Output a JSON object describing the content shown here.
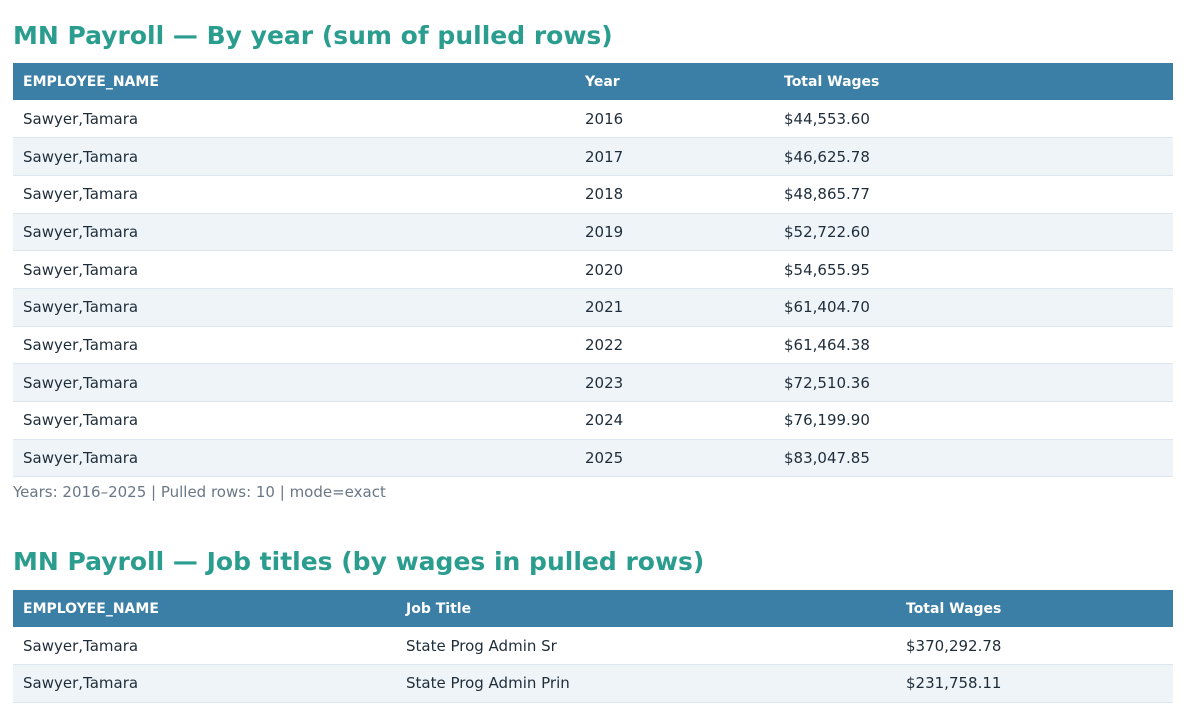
{
  "section_by_year": {
    "title": "MN Payroll — By year (sum of pulled rows)",
    "headers": [
      "EMPLOYEE_NAME",
      "Year",
      "Total Wages"
    ],
    "rows": [
      [
        "Sawyer,Tamara",
        "2016",
        "$44,553.60"
      ],
      [
        "Sawyer,Tamara",
        "2017",
        "$46,625.78"
      ],
      [
        "Sawyer,Tamara",
        "2018",
        "$48,865.77"
      ],
      [
        "Sawyer,Tamara",
        "2019",
        "$52,722.60"
      ],
      [
        "Sawyer,Tamara",
        "2020",
        "$54,655.95"
      ],
      [
        "Sawyer,Tamara",
        "2021",
        "$61,404.70"
      ],
      [
        "Sawyer,Tamara",
        "2022",
        "$61,464.38"
      ],
      [
        "Sawyer,Tamara",
        "2023",
        "$72,510.36"
      ],
      [
        "Sawyer,Tamara",
        "2024",
        "$76,199.90"
      ],
      [
        "Sawyer,Tamara",
        "2025",
        "$83,047.85"
      ]
    ],
    "summary": "Years: 2016–2025 | Pulled rows: 10 | mode=exact"
  },
  "section_job_titles": {
    "title": "MN Payroll — Job titles (by wages in pulled rows)",
    "headers": [
      "EMPLOYEE_NAME",
      "Job Title",
      "Total Wages"
    ],
    "rows": [
      [
        "Sawyer,Tamara",
        "State Prog Admin Sr",
        "$370,292.78"
      ],
      [
        "Sawyer,Tamara",
        "State Prog Admin Prin",
        "$231,758.11"
      ]
    ]
  },
  "colors": {
    "title": "#2a9d8f",
    "header_bg": "#3b7ea6",
    "row_alt_bg": "#eef4f8"
  }
}
